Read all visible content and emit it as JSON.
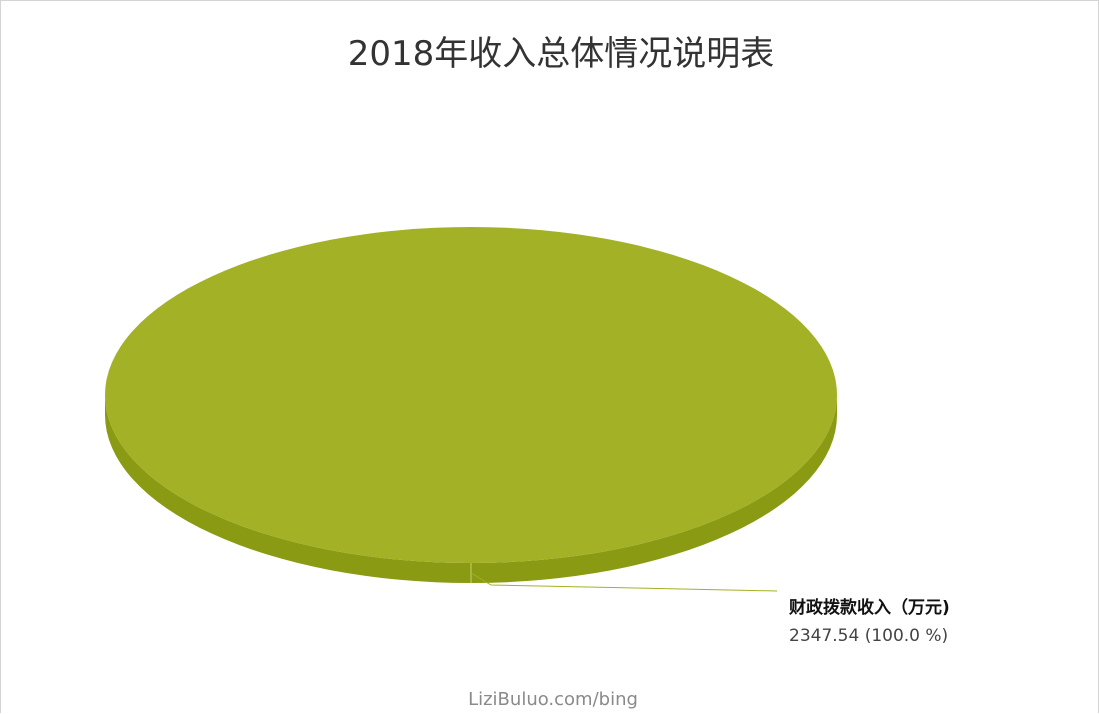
{
  "colors": {
    "slice_top": "#a3b126",
    "slice_side": "#8a9a12",
    "leader_line": "#a3b126"
  },
  "watermark": "LiziBuluo.com/bing",
  "chart_data": {
    "type": "pie",
    "title": "2018年收入总体情况说明表",
    "unit": "万元",
    "slices": [
      {
        "label": "财政拨款收入（万元)",
        "value": 2347.54,
        "percent_text": "2347.54 (100.0 %)"
      }
    ]
  }
}
